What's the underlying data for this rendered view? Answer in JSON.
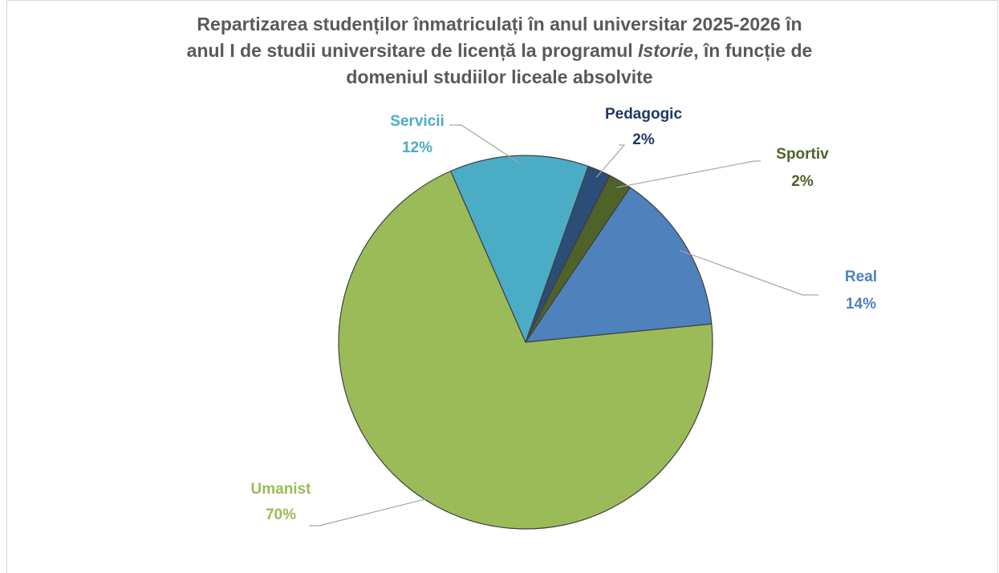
{
  "chart_data": {
    "type": "pie",
    "title": [
      "Repartizarea studenților înmatriculați în anul universitar 2025-2026 în",
      "anul I de studii universitare de licență la programul ",
      "Istorie",
      ", în funcție de",
      "domeniul studiilor liceale absolvite"
    ],
    "categories": [
      "Real",
      "Umanist",
      "Servicii",
      "Pedagogic",
      "Sportiv"
    ],
    "values": [
      14,
      70,
      12,
      2,
      2
    ],
    "value_labels": [
      "14%",
      "70%",
      "12%",
      "2%",
      "2%"
    ],
    "colors": [
      "#4f81bd",
      "#9bbb59",
      "#4bacc6",
      "#2c4d75",
      "#4f6228"
    ],
    "label_colors": [
      "#4f81bd",
      "#9bbb59",
      "#4bacc6",
      "#1f3864",
      "#4f6228"
    ]
  }
}
